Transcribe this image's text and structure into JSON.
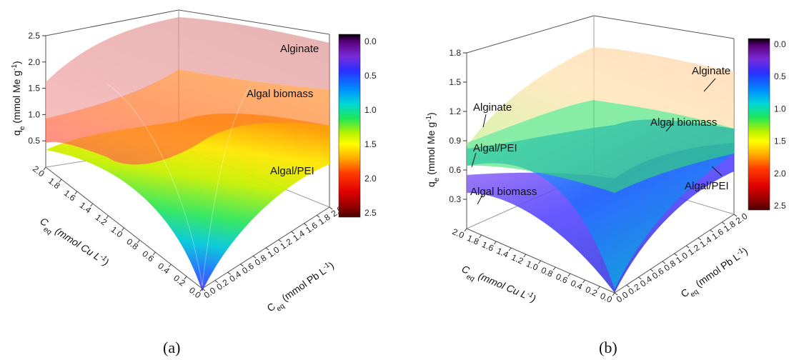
{
  "figure": {
    "panels": [
      "(a)",
      "(b)"
    ]
  },
  "chart_data": [
    {
      "type": "surface3d",
      "panel": "(a)",
      "zlabel": "q_e (mmol Me g^-1)",
      "xlabel": "C_eq (mmol Cu L^-1)",
      "ylabel": "C_eq (mmol Pb L^-1)",
      "zlim": [
        0,
        2.5
      ],
      "z_ticks": [
        "0.5",
        "1.0",
        "1.5",
        "2.0",
        "2.5"
      ],
      "x_ticks": [
        "0.0",
        "0.2",
        "0.4",
        "0.6",
        "0.8",
        "1.0",
        "1.2",
        "1.4",
        "1.6",
        "1.8",
        "2.0"
      ],
      "y_ticks": [
        "0.0",
        "0.2",
        "0.4",
        "0.6",
        "0.8",
        "1.0",
        "1.2",
        "1.4",
        "1.6",
        "1.8",
        "2.0"
      ],
      "colorbar": {
        "ticks": [
          "0.0",
          "0.5",
          "1.0",
          "1.5",
          "2.0",
          "2.5"
        ],
        "range": [
          0,
          2.5
        ]
      },
      "series": [
        {
          "name": "Alginate",
          "z_at_max_cu": 2.0,
          "z_at_max_pb": 2.3,
          "z_at_max_both": 2.45
        },
        {
          "name": "Algal biomass",
          "z_at_max_cu": 1.45,
          "z_at_max_pb": 1.7,
          "z_at_max_both": 1.8
        },
        {
          "name": "Algal/PEI",
          "z_at_max_cu": 1.1,
          "z_at_max_pb": 1.35,
          "z_at_max_both": 1.5
        }
      ]
    },
    {
      "type": "surface3d",
      "panel": "(b)",
      "zlabel": "q_e (mmol Me g^-1)",
      "xlabel": "C_eq (mmol Cu L^-1)",
      "ylabel": "C_eq (mmol Pb L^-1)",
      "zlim": [
        0,
        1.8
      ],
      "z_ticks": [
        "0.3",
        "0.6",
        "0.9",
        "1.2",
        "1.5",
        "1.8"
      ],
      "x_ticks": [
        "0.0",
        "0.2",
        "0.4",
        "0.6",
        "0.8",
        "1.0",
        "1.2",
        "1.4",
        "1.6",
        "1.8",
        "2.0"
      ],
      "y_ticks": [
        "0.0",
        "0.2",
        "0.4",
        "0.6",
        "0.8",
        "1.0",
        "1.2",
        "1.4",
        "1.6",
        "1.8",
        "2.0"
      ],
      "colorbar": {
        "ticks": [
          "0.0",
          "0.5",
          "1.0",
          "1.5",
          "2.0",
          "2.5"
        ],
        "range": [
          0,
          2.5
        ]
      },
      "series": [
        {
          "name": "Alginate",
          "z_at_max_cu": 1.05,
          "z_at_max_pb": 1.55,
          "z_at_max_both": 1.65
        },
        {
          "name": "Algal biomass",
          "z_at_max_cu": 0.3,
          "z_at_max_pb": 0.9,
          "z_at_max_both": 1.05
        },
        {
          "name": "Algal/PEI",
          "z_at_max_cu": 0.75,
          "z_at_max_pb": 0.85,
          "z_at_max_both": 0.95
        }
      ],
      "labels": [
        "Alginate",
        "Algal/PEI",
        "Algal biomass",
        "Alginate",
        "Algal biomass",
        "Algal/PEI"
      ]
    }
  ]
}
